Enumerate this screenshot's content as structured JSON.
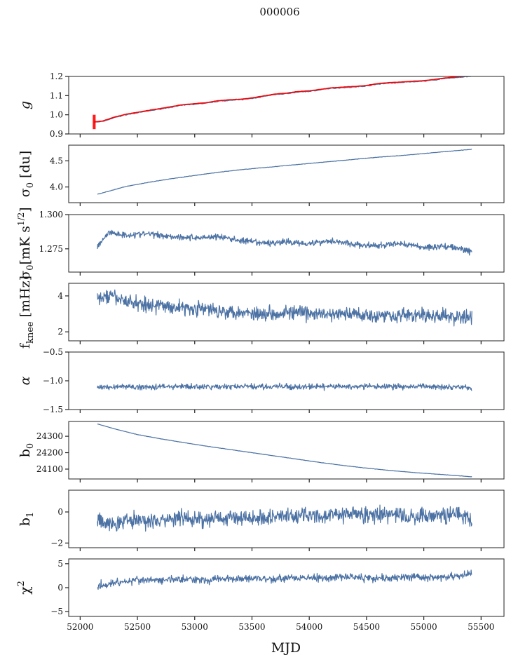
{
  "figure": {
    "title": "000006",
    "xlabel": "MJD",
    "xlim": [
      51900,
      55700
    ],
    "xticks": [
      52000,
      52500,
      53000,
      53500,
      54000,
      54500,
      55000,
      55500
    ],
    "xtick_labels": [
      "52000",
      "52500",
      "53000",
      "53500",
      "54000",
      "54500",
      "55000",
      "55500"
    ]
  },
  "chart_data": [
    {
      "type": "line",
      "id": "g",
      "ylabel": "g",
      "ylim": [
        0.9,
        1.2
      ],
      "yticks": [
        0.9,
        1.0,
        1.1,
        1.2
      ],
      "ytick_labels": [
        "0.9",
        "1.0",
        "1.1",
        "1.2"
      ],
      "series": [
        {
          "color": "#4c72a4",
          "x": [
            52120,
            52200,
            52300,
            52400,
            52500,
            52600,
            52700,
            52800,
            52900,
            53000,
            53100,
            53200,
            53300,
            53400,
            53500,
            53600,
            53700,
            53800,
            53900,
            54000,
            54100,
            54200,
            54300,
            54400,
            54500,
            54600,
            54700,
            54800,
            54900,
            55000,
            55100,
            55200,
            55300,
            55420
          ],
          "y": [
            0.96,
            0.965,
            0.985,
            1.0,
            1.01,
            1.02,
            1.03,
            1.04,
            1.05,
            1.055,
            1.06,
            1.07,
            1.075,
            1.078,
            1.085,
            1.095,
            1.105,
            1.11,
            1.118,
            1.122,
            1.13,
            1.138,
            1.142,
            1.145,
            1.15,
            1.16,
            1.165,
            1.168,
            1.172,
            1.175,
            1.182,
            1.19,
            1.195,
            1.2
          ]
        },
        {
          "color": "#ff0000",
          "x": [
            52120,
            52200,
            52300,
            52400,
            52500,
            52600,
            52700,
            52800,
            52900,
            53000,
            53100,
            53200,
            53300,
            53400,
            53500,
            53600,
            53700,
            53800,
            53900,
            54000,
            54100,
            54200,
            54300,
            54400,
            54500,
            54600,
            54700,
            54800,
            54900,
            55000,
            55100,
            55200,
            55300,
            55420
          ],
          "y": [
            0.963,
            0.968,
            0.988,
            1.003,
            1.013,
            1.023,
            1.033,
            1.043,
            1.053,
            1.058,
            1.063,
            1.073,
            1.078,
            1.081,
            1.088,
            1.098,
            1.108,
            1.113,
            1.121,
            1.125,
            1.133,
            1.141,
            1.145,
            1.148,
            1.153,
            1.163,
            1.168,
            1.171,
            1.175,
            1.178,
            1.185,
            1.193,
            1.198,
            1.203
          ],
          "error_band": [
            52110,
            52135,
            0.925,
            1.0
          ]
        }
      ]
    },
    {
      "type": "line",
      "id": "sigma0_du",
      "ylabel": "σ0 [du]",
      "ylim": [
        3.7,
        4.8
      ],
      "yticks": [
        4.0,
        4.5
      ],
      "ytick_labels": [
        "4.0",
        "4.5"
      ],
      "series": [
        {
          "color": "#4c72a4",
          "x": [
            52150,
            52250,
            52400,
            52600,
            52800,
            53000,
            53200,
            53400,
            53600,
            53800,
            54000,
            54200,
            54400,
            54600,
            54800,
            55000,
            55200,
            55420
          ],
          "y": [
            3.86,
            3.92,
            4.01,
            4.09,
            4.16,
            4.22,
            4.28,
            4.33,
            4.37,
            4.41,
            4.45,
            4.49,
            4.53,
            4.57,
            4.6,
            4.64,
            4.68,
            4.72
          ]
        }
      ]
    },
    {
      "type": "line",
      "id": "sigma0_mk",
      "ylabel": "σ0[mK s^1/2]",
      "ylim": [
        1.258,
        1.3
      ],
      "yticks": [
        1.275,
        1.3
      ],
      "ytick_labels": [
        "1.275",
        "1.300"
      ],
      "series": [
        {
          "color": "#4c72a4",
          "x": [
            52150,
            52250,
            52400,
            52600,
            52800,
            53000,
            53200,
            53400,
            53600,
            53800,
            54000,
            54200,
            54400,
            54600,
            54800,
            55000,
            55200,
            55420
          ],
          "y": [
            1.277,
            1.287,
            1.285,
            1.286,
            1.284,
            1.283,
            1.284,
            1.281,
            1.279,
            1.28,
            1.279,
            1.281,
            1.278,
            1.277,
            1.279,
            1.276,
            1.277,
            1.273
          ]
        }
      ]
    },
    {
      "type": "line",
      "id": "fknee",
      "ylabel": "f_knee [mHz]",
      "ylim": [
        1.5,
        4.7
      ],
      "yticks": [
        2,
        4
      ],
      "ytick_labels": [
        "2",
        "4"
      ],
      "series": [
        {
          "color": "#4c72a4",
          "x": [
            52150,
            52250,
            52400,
            52600,
            52800,
            53000,
            53200,
            53400,
            53600,
            53800,
            54000,
            54200,
            54400,
            54600,
            54800,
            55000,
            55200,
            55420
          ],
          "y": [
            3.8,
            4.0,
            3.7,
            3.5,
            3.4,
            3.3,
            3.2,
            3.1,
            3.0,
            3.1,
            3.0,
            2.95,
            3.0,
            2.9,
            2.95,
            2.9,
            2.85,
            2.8
          ]
        }
      ]
    },
    {
      "type": "line",
      "id": "alpha",
      "ylabel": "α",
      "ylim": [
        -1.5,
        -0.5
      ],
      "yticks": [
        -1.5,
        -1.0,
        -0.5
      ],
      "ytick_labels": [
        "−1.5",
        "−1.0",
        "−0.5"
      ],
      "series": [
        {
          "color": "#4c72a4",
          "x": [
            52150,
            52300,
            52500,
            52700,
            52900,
            53100,
            53300,
            53500,
            53700,
            53900,
            54100,
            54300,
            54500,
            54700,
            54900,
            55100,
            55300,
            55420
          ],
          "y": [
            -1.12,
            -1.1,
            -1.11,
            -1.1,
            -1.1,
            -1.11,
            -1.1,
            -1.1,
            -1.1,
            -1.11,
            -1.1,
            -1.1,
            -1.1,
            -1.1,
            -1.1,
            -1.1,
            -1.1,
            -1.12
          ]
        }
      ]
    },
    {
      "type": "line",
      "id": "b0",
      "ylabel": "b0",
      "ylim": [
        24040,
        24390
      ],
      "yticks": [
        24100,
        24200,
        24300
      ],
      "ytick_labels": [
        "24100",
        "24200",
        "24300"
      ],
      "series": [
        {
          "color": "#4c72a4",
          "x": [
            52150,
            52300,
            52500,
            52700,
            52900,
            53100,
            53300,
            53500,
            53700,
            53900,
            54100,
            54300,
            54500,
            54700,
            54900,
            55100,
            55300,
            55420
          ],
          "y": [
            24375,
            24345,
            24310,
            24285,
            24262,
            24240,
            24220,
            24200,
            24180,
            24160,
            24140,
            24122,
            24106,
            24092,
            24080,
            24070,
            24060,
            24053
          ]
        }
      ]
    },
    {
      "type": "line",
      "id": "b1",
      "ylabel": "b1",
      "ylim": [
        -2.3,
        1.4
      ],
      "yticks": [
        -2,
        0
      ],
      "ytick_labels": [
        "−2",
        "0"
      ],
      "series": [
        {
          "color": "#4c72a4",
          "x": [
            52150,
            52300,
            52500,
            52700,
            52900,
            53100,
            53300,
            53500,
            53700,
            53900,
            54100,
            54300,
            54500,
            54700,
            54900,
            55100,
            55300,
            55420
          ],
          "y": [
            -0.6,
            -0.7,
            -0.5,
            -0.6,
            -0.4,
            -0.5,
            -0.3,
            -0.4,
            -0.3,
            -0.2,
            -0.3,
            -0.1,
            -0.2,
            -0.2,
            -0.3,
            -0.2,
            -0.1,
            -0.5
          ]
        }
      ]
    },
    {
      "type": "line",
      "id": "chi2",
      "ylabel": "χ^2",
      "ylim": [
        -6,
        6
      ],
      "yticks": [
        -5,
        0,
        5
      ],
      "ytick_labels": [
        "−5",
        "0",
        "5"
      ],
      "series": [
        {
          "color": "#4c72a4",
          "x": [
            52150,
            52300,
            52500,
            52700,
            52900,
            53100,
            53300,
            53500,
            53700,
            53900,
            54100,
            54300,
            54500,
            54700,
            54900,
            55100,
            55300,
            55420
          ],
          "y": [
            0.3,
            1.0,
            1.6,
            1.5,
            1.8,
            1.6,
            1.9,
            2.0,
            1.8,
            2.1,
            2.0,
            2.3,
            2.1,
            2.0,
            2.2,
            2.1,
            2.4,
            3.0
          ]
        }
      ]
    }
  ]
}
